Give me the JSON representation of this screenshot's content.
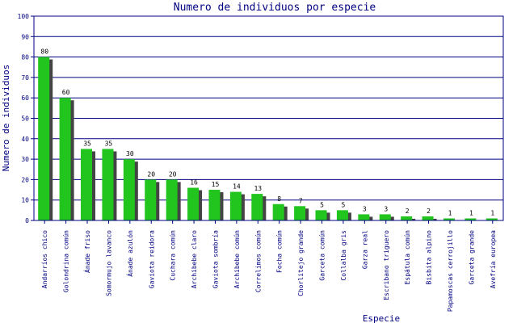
{
  "chart_data": {
    "type": "bar",
    "title": "Numero de individuos por especie",
    "xlabel": "Especie",
    "ylabel": "Numero de individuos",
    "ylim": [
      0,
      100
    ],
    "yticks": [
      0,
      10,
      20,
      30,
      40,
      50,
      60,
      70,
      80,
      90,
      100
    ],
    "grid": true,
    "legend": "none",
    "colors": {
      "bar": "#22c41e",
      "shadow": "#444444",
      "grid": "#000080",
      "frame": "#000080",
      "text": "#000080"
    },
    "categories": [
      "Andarríos chico",
      "Golondrina común",
      "Ánade friso",
      "Somormujo lavanco",
      "Ánade azulón",
      "Gaviota reidora",
      "Cuchara común",
      "Archibebe claro",
      "Gaviota sombría",
      "Archibebe común",
      "Correlimos común",
      "Focha común",
      "Chorlitejo grande",
      "Garceta común",
      "Collalba gris",
      "Garza real",
      "Escribano triguero",
      "Espátula común",
      "Bisbita alpino",
      "Papamoscas cerrojillo",
      "Garceta grande",
      "Avefría europea"
    ],
    "values": [
      80,
      60,
      35,
      35,
      30,
      20,
      20,
      16,
      15,
      14,
      13,
      8,
      7,
      5,
      5,
      3,
      3,
      2,
      2,
      1,
      1,
      1
    ]
  }
}
